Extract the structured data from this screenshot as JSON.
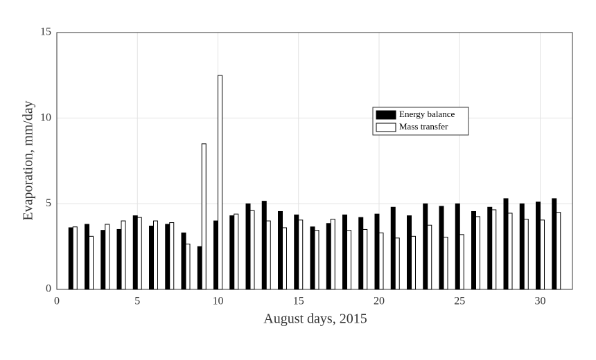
{
  "chart_data": {
    "type": "bar",
    "x_label": "August days, 2015",
    "y_label": "Evaporation, mm/day",
    "x": [
      1,
      2,
      3,
      4,
      5,
      6,
      7,
      8,
      9,
      10,
      11,
      12,
      13,
      14,
      15,
      16,
      17,
      18,
      19,
      20,
      21,
      22,
      23,
      24,
      25,
      26,
      27,
      28,
      29,
      30,
      31
    ],
    "series": [
      {
        "name": "Energy balance",
        "color": "#000000",
        "values": [
          3.6,
          3.8,
          3.45,
          3.5,
          4.3,
          3.7,
          3.8,
          3.3,
          2.5,
          4.0,
          4.3,
          5.0,
          5.15,
          4.55,
          4.35,
          3.65,
          3.85,
          4.35,
          4.2,
          4.4,
          4.8,
          4.3,
          5.0,
          4.85,
          5.0,
          4.55,
          4.8,
          5.3,
          5.0,
          5.1,
          5.3
        ]
      },
      {
        "name": "Mass transfer",
        "color": "#ffffff",
        "values": [
          3.65,
          3.1,
          3.8,
          4.0,
          4.2,
          4.0,
          3.9,
          2.65,
          8.5,
          12.5,
          4.4,
          4.6,
          4.0,
          3.6,
          4.05,
          3.45,
          4.1,
          3.45,
          3.5,
          3.3,
          3.0,
          3.1,
          3.75,
          3.05,
          3.2,
          4.25,
          4.65,
          4.45,
          4.1,
          4.05,
          4.5
        ]
      }
    ],
    "xlim": [
      0,
      32
    ],
    "xticks": [
      0,
      5,
      10,
      15,
      20,
      25,
      30
    ],
    "ylim": [
      0,
      15
    ],
    "yticks": [
      0,
      5,
      10,
      15
    ],
    "grid": true
  }
}
